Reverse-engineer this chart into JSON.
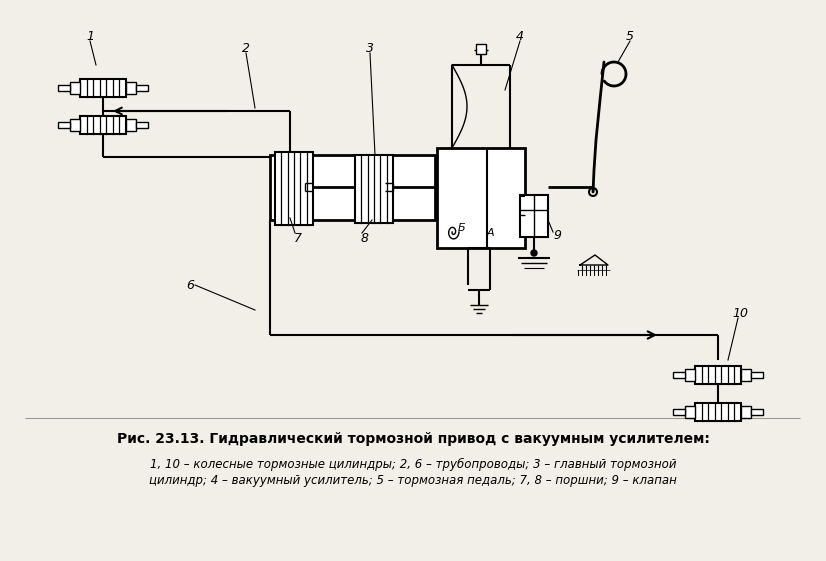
{
  "bg_color": "#f2efe8",
  "title_text": "Рис. 23.13. Гидравлический тормозной привод с вакуумным усилителем:",
  "caption_line1": "1, 10 – колесные тормозные цилиндры; 2, 6 – трубопроводы; 3 – главный тормозной",
  "caption_line2": "цилиндр; 4 – вакуумный усилитель; 5 – тормозная педаль; 7, 8 – поршни; 9 – клапан",
  "figsize": [
    8.26,
    5.61
  ],
  "dpi": 100
}
